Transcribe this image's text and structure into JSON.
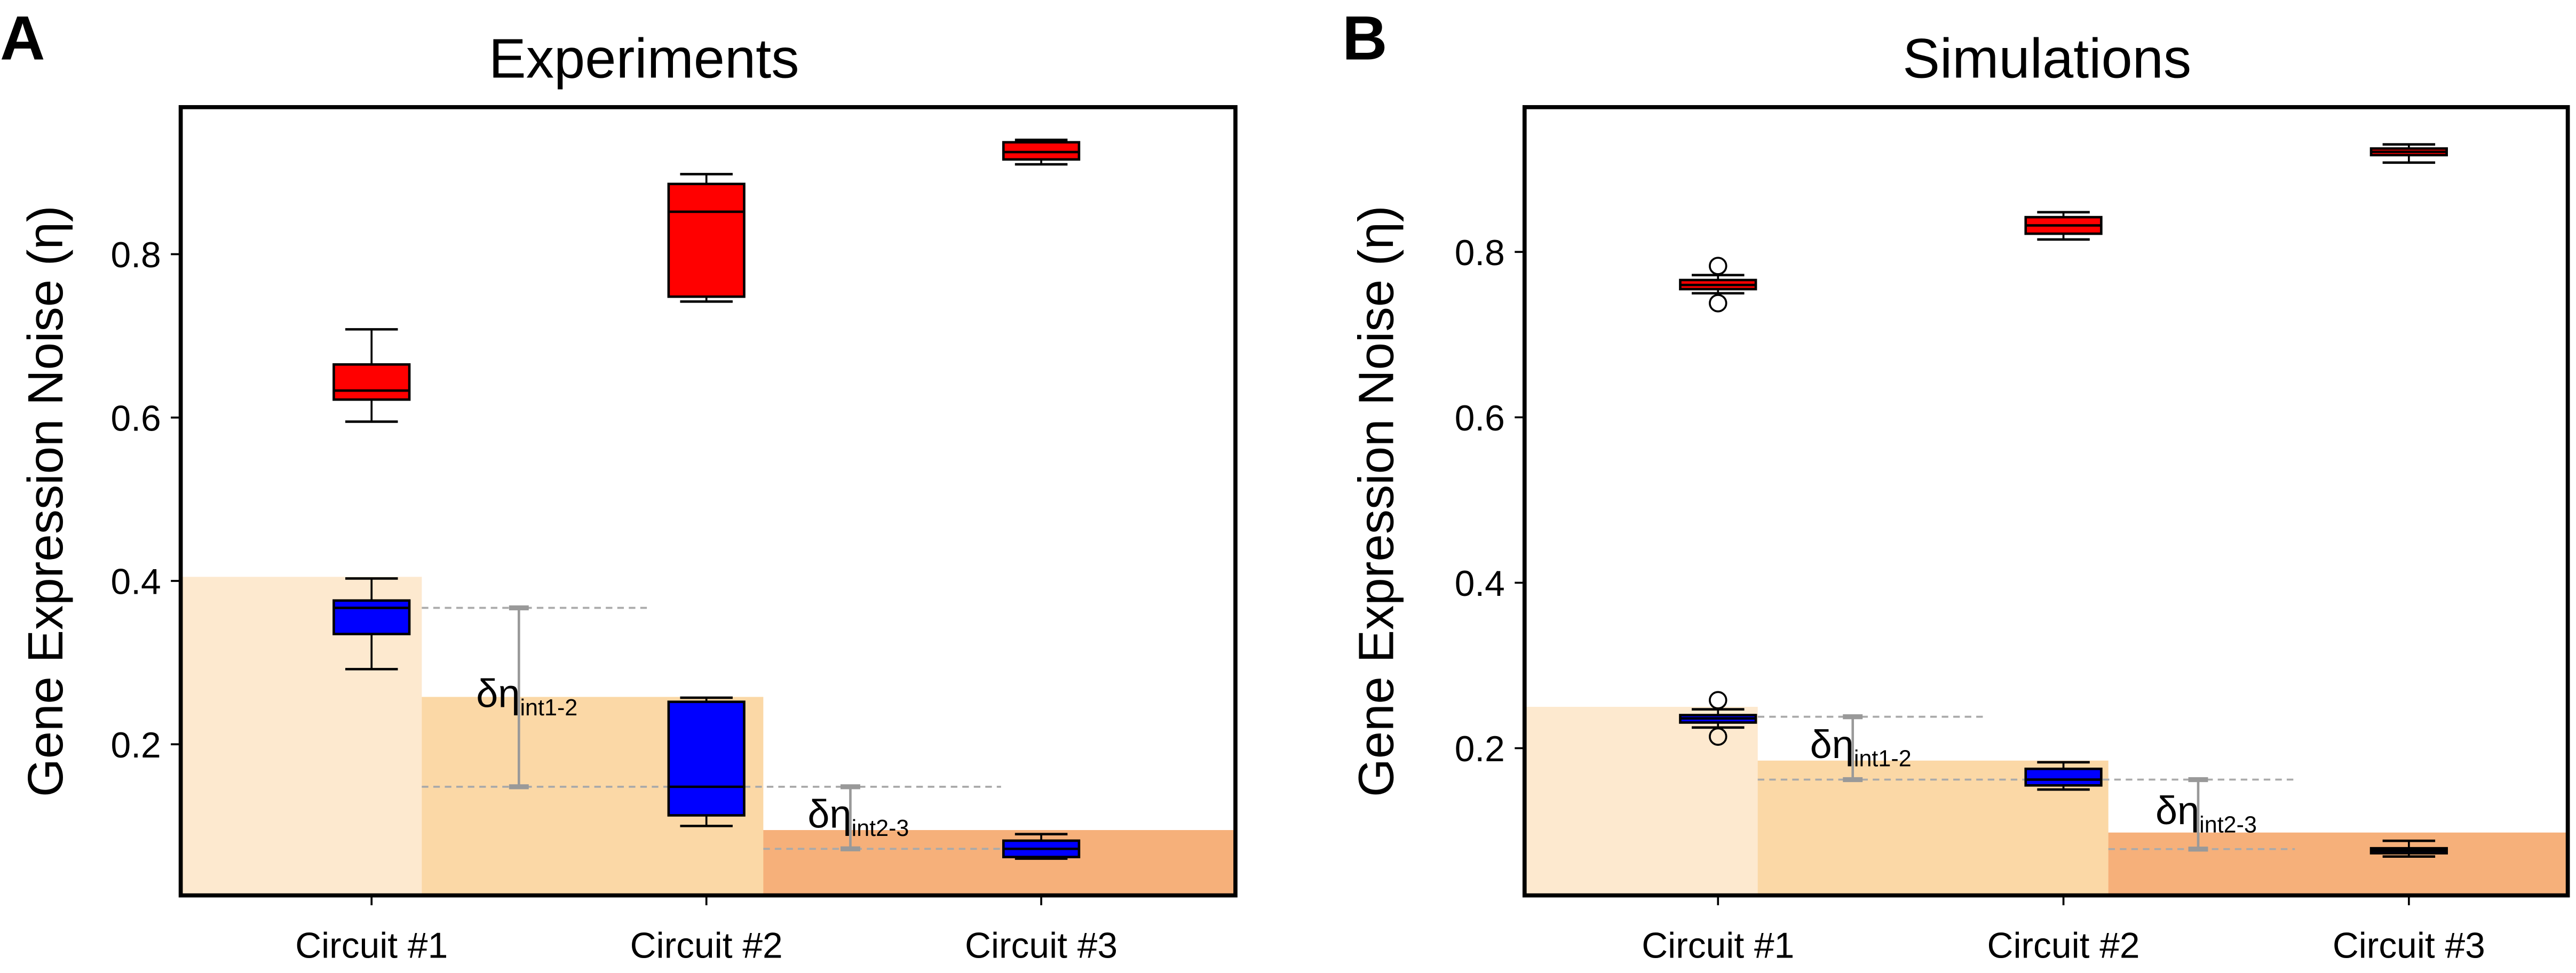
{
  "chart_data": [
    {
      "type": "box",
      "panel_label": "A",
      "title": "Experiments",
      "ylabel": "Gene Expression Noise (η)",
      "xlabel": "",
      "categories": [
        "Circuit #1",
        "Circuit #2",
        "Circuit #3"
      ],
      "yticks": [
        0.2,
        0.4,
        0.6,
        0.8
      ],
      "ytick_labels": [
        "0.2",
        "0.4",
        "0.6",
        "0.8"
      ],
      "ylim": [
        0.015,
        0.98
      ],
      "xlim": [
        0.43,
        3.58
      ],
      "series": [
        {
          "name": "red",
          "color": "#ff0000",
          "boxes": [
            {
              "whislo": 0.595,
              "q1": 0.622,
              "med": 0.633,
              "q3": 0.665,
              "whishi": 0.708,
              "fliers": []
            },
            {
              "whislo": 0.742,
              "q1": 0.748,
              "med": 0.852,
              "q3": 0.886,
              "whishi": 0.898,
              "fliers": []
            },
            {
              "whislo": 0.91,
              "q1": 0.916,
              "med": 0.925,
              "q3": 0.937,
              "whishi": 0.94,
              "fliers": []
            }
          ]
        },
        {
          "name": "blue",
          "color": "#0000ff",
          "boxes": [
            {
              "whislo": 0.292,
              "q1": 0.335,
              "med": 0.367,
              "q3": 0.376,
              "whishi": 0.403,
              "fliers": []
            },
            {
              "whislo": 0.1,
              "q1": 0.113,
              "med": 0.148,
              "q3": 0.252,
              "whishi": 0.257,
              "fliers": []
            },
            {
              "whislo": 0.06,
              "q1": 0.062,
              "med": 0.072,
              "q3": 0.082,
              "whishi": 0.09,
              "fliers": []
            }
          ]
        }
      ],
      "bands": [
        {
          "x_to": 1.15,
          "y_top": 0.405,
          "color": "#fde9cf"
        },
        {
          "x_to": 2.17,
          "y_top": 0.258,
          "color": "#fbd8a6"
        },
        {
          "x_to": 3.58,
          "y_top": 0.095,
          "color": "#f6b07a"
        }
      ],
      "reference_lines": [
        {
          "y": 0.367,
          "x_from": 1.15,
          "x_to": 1.83
        },
        {
          "y": 0.148,
          "x_from": 1.15,
          "x_to": 2.88
        },
        {
          "y": 0.072,
          "x_from": 2.17,
          "x_to": 2.88
        }
      ],
      "intervals": [
        {
          "x": 1.44,
          "y_from": 0.367,
          "y_to": 0.148,
          "label": "δη",
          "sub": "int1-2"
        },
        {
          "x": 2.43,
          "y_from": 0.148,
          "y_to": 0.072,
          "label": "δη",
          "sub": "int2-3"
        }
      ]
    },
    {
      "type": "box",
      "panel_label": "B",
      "title": "Simulations",
      "ylabel": "Gene Expression Noise (η)",
      "xlabel": "",
      "categories": [
        "Circuit #1",
        "Circuit #2",
        "Circuit #3"
      ],
      "yticks": [
        0.2,
        0.4,
        0.6,
        0.8
      ],
      "ytick_labels": [
        "0.2",
        "0.4",
        "0.6",
        "0.8"
      ],
      "ylim": [
        0.022,
        0.975
      ],
      "xlim": [
        0.44,
        3.46
      ],
      "series": [
        {
          "name": "red",
          "color": "#ff0000",
          "boxes": [
            {
              "whislo": 0.75,
              "q1": 0.755,
              "med": 0.76,
              "q3": 0.766,
              "whishi": 0.772,
              "fliers": [
                0.783,
                0.738
              ]
            },
            {
              "whislo": 0.815,
              "q1": 0.822,
              "med": 0.832,
              "q3": 0.842,
              "whishi": 0.848,
              "fliers": []
            },
            {
              "whislo": 0.908,
              "q1": 0.917,
              "med": 0.921,
              "q3": 0.925,
              "whishi": 0.93,
              "fliers": []
            }
          ]
        },
        {
          "name": "blue",
          "color": "#0000ff",
          "boxes": [
            {
              "whislo": 0.225,
              "q1": 0.231,
              "med": 0.236,
              "q3": 0.24,
              "whishi": 0.247,
              "fliers": [
                0.258,
                0.214
              ]
            },
            {
              "whislo": 0.15,
              "q1": 0.155,
              "med": 0.162,
              "q3": 0.175,
              "whishi": 0.183,
              "fliers": []
            },
            {
              "whislo": 0.069,
              "q1": 0.073,
              "med": 0.076,
              "q3": 0.079,
              "whishi": 0.088,
              "fliers": []
            }
          ]
        }
      ],
      "bands": [
        {
          "x_to": 1.115,
          "y_top": 0.25,
          "color": "#fde9cf"
        },
        {
          "x_to": 2.13,
          "y_top": 0.185,
          "color": "#fbd8a6"
        },
        {
          "x_to": 3.46,
          "y_top": 0.098,
          "color": "#f6b07a"
        }
      ],
      "reference_lines": [
        {
          "y": 0.238,
          "x_from": 1.115,
          "x_to": 1.78
        },
        {
          "y": 0.162,
          "x_from": 1.115,
          "x_to": 2.67
        },
        {
          "y": 0.078,
          "x_from": 2.13,
          "x_to": 2.67
        }
      ],
      "intervals": [
        {
          "x": 1.39,
          "y_from": 0.238,
          "y_to": 0.162,
          "label": "δη",
          "sub": "int1-2"
        },
        {
          "x": 2.39,
          "y_from": 0.162,
          "y_to": 0.078,
          "label": "δη",
          "sub": "int2-3"
        }
      ]
    }
  ]
}
